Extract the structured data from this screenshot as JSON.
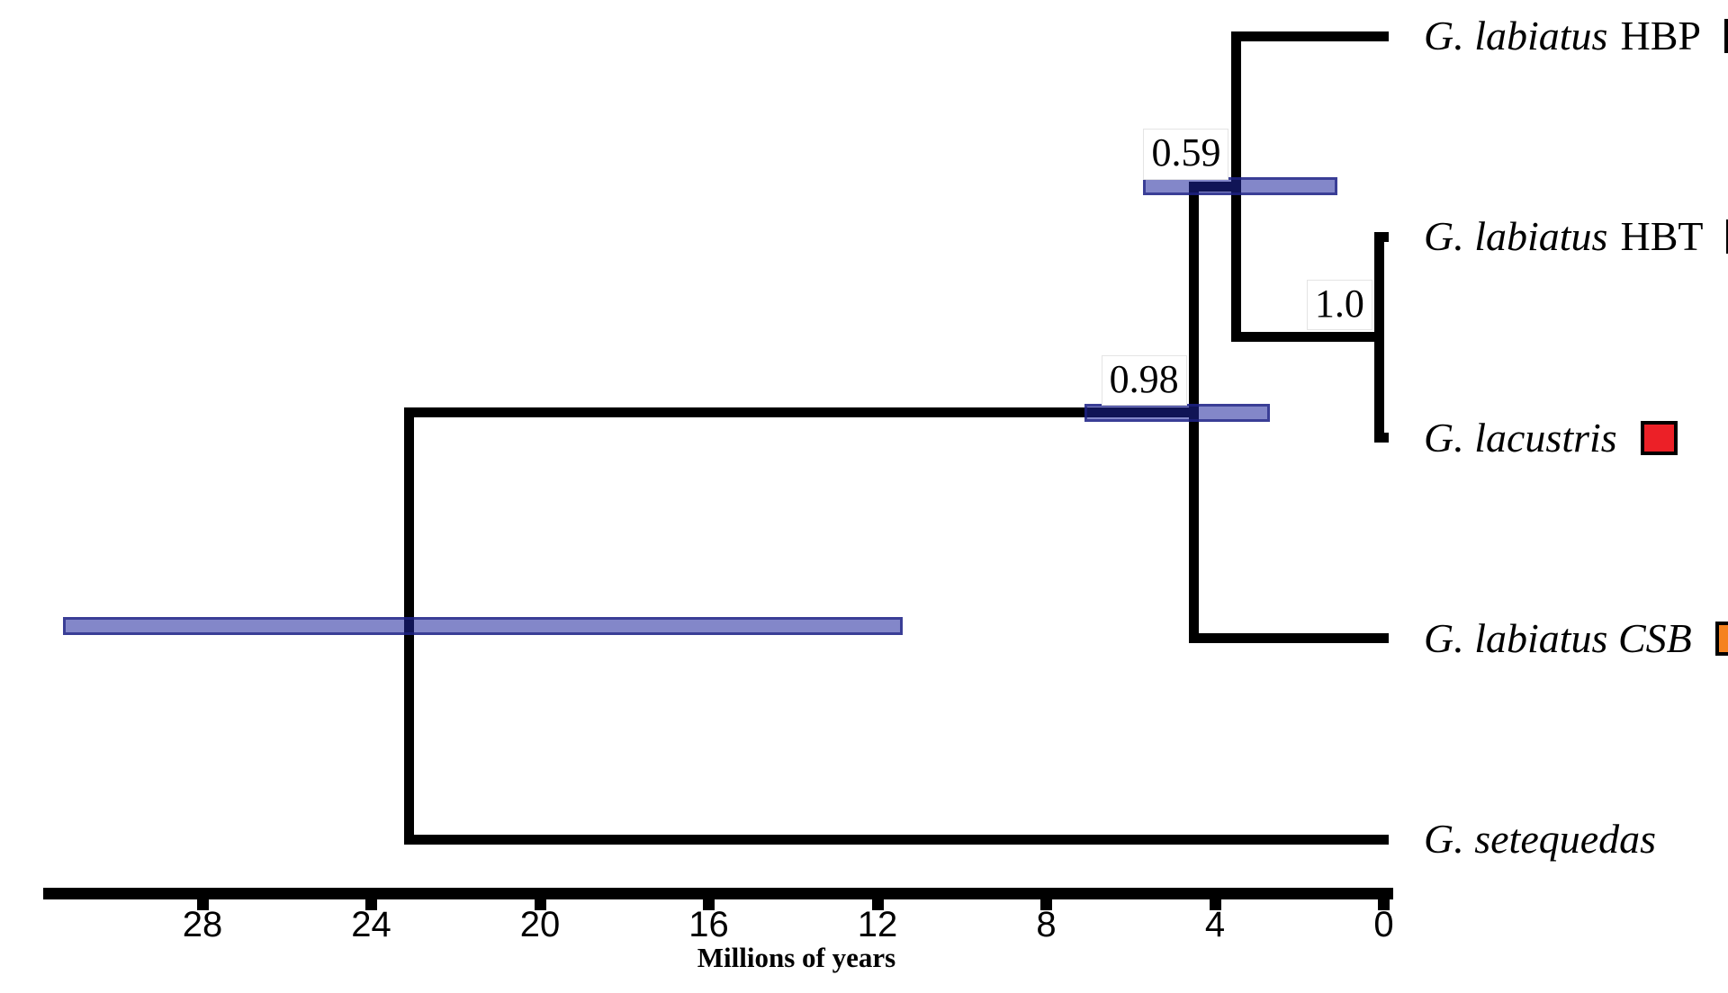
{
  "figure": {
    "type": "phylogenetic-chronogram",
    "background_color": "#ffffff",
    "branch_color": "#000000",
    "hpd_bar_fill": "rgba(29,37,157,0.55)",
    "hpd_bar_border": "rgba(30,35,130,0.72)",
    "axis": {
      "label": "Millions of years",
      "ticks": [
        "28",
        "24",
        "20",
        "16",
        "12",
        "8",
        "4",
        "0"
      ],
      "orientation": "time increases right-to-left, 0 at right"
    },
    "tips": [
      {
        "id": "hbp",
        "label_italic": "G. labiatus",
        "label_roman": "HBP",
        "marker_color": "#F7EB0F",
        "age_ma": 0
      },
      {
        "id": "hbt",
        "label_italic": "G. labiatus",
        "label_roman": "HBT",
        "marker_color": "#4BAE50",
        "age_ma": 0
      },
      {
        "id": "lacustris",
        "label_italic": "G. lacustris",
        "label_roman": "",
        "marker_color": "#EC2027",
        "age_ma": 0
      },
      {
        "id": "csb",
        "label_italic": "G. labiatus CSB",
        "label_roman": "",
        "marker_color": "#F5821F",
        "age_ma": 0
      },
      {
        "id": "setequedas",
        "label_italic": "G. setequedas",
        "label_roman": "",
        "marker_color": null,
        "age_ma": 0
      }
    ],
    "nodes": [
      {
        "id": "node_1_0",
        "support": "1.0",
        "age_ma": 0.1,
        "hpd_ma": null,
        "children": [
          "hbt",
          "lacustris"
        ]
      },
      {
        "id": "node_0_59",
        "support": "0.59",
        "age_ma": 3.5,
        "hpd_ma": [
          5.7,
          1.1
        ],
        "children": [
          "hbp",
          "node_1_0"
        ]
      },
      {
        "id": "node_0_98",
        "support": "0.98",
        "age_ma": 4.5,
        "hpd_ma": [
          7.1,
          2.7
        ],
        "children": [
          "node_0_59",
          "csb"
        ]
      },
      {
        "id": "root",
        "support": "",
        "age_ma": 23.1,
        "hpd_ma": [
          31.3,
          11.4
        ],
        "children": [
          "node_0_98",
          "setequedas"
        ]
      }
    ]
  }
}
